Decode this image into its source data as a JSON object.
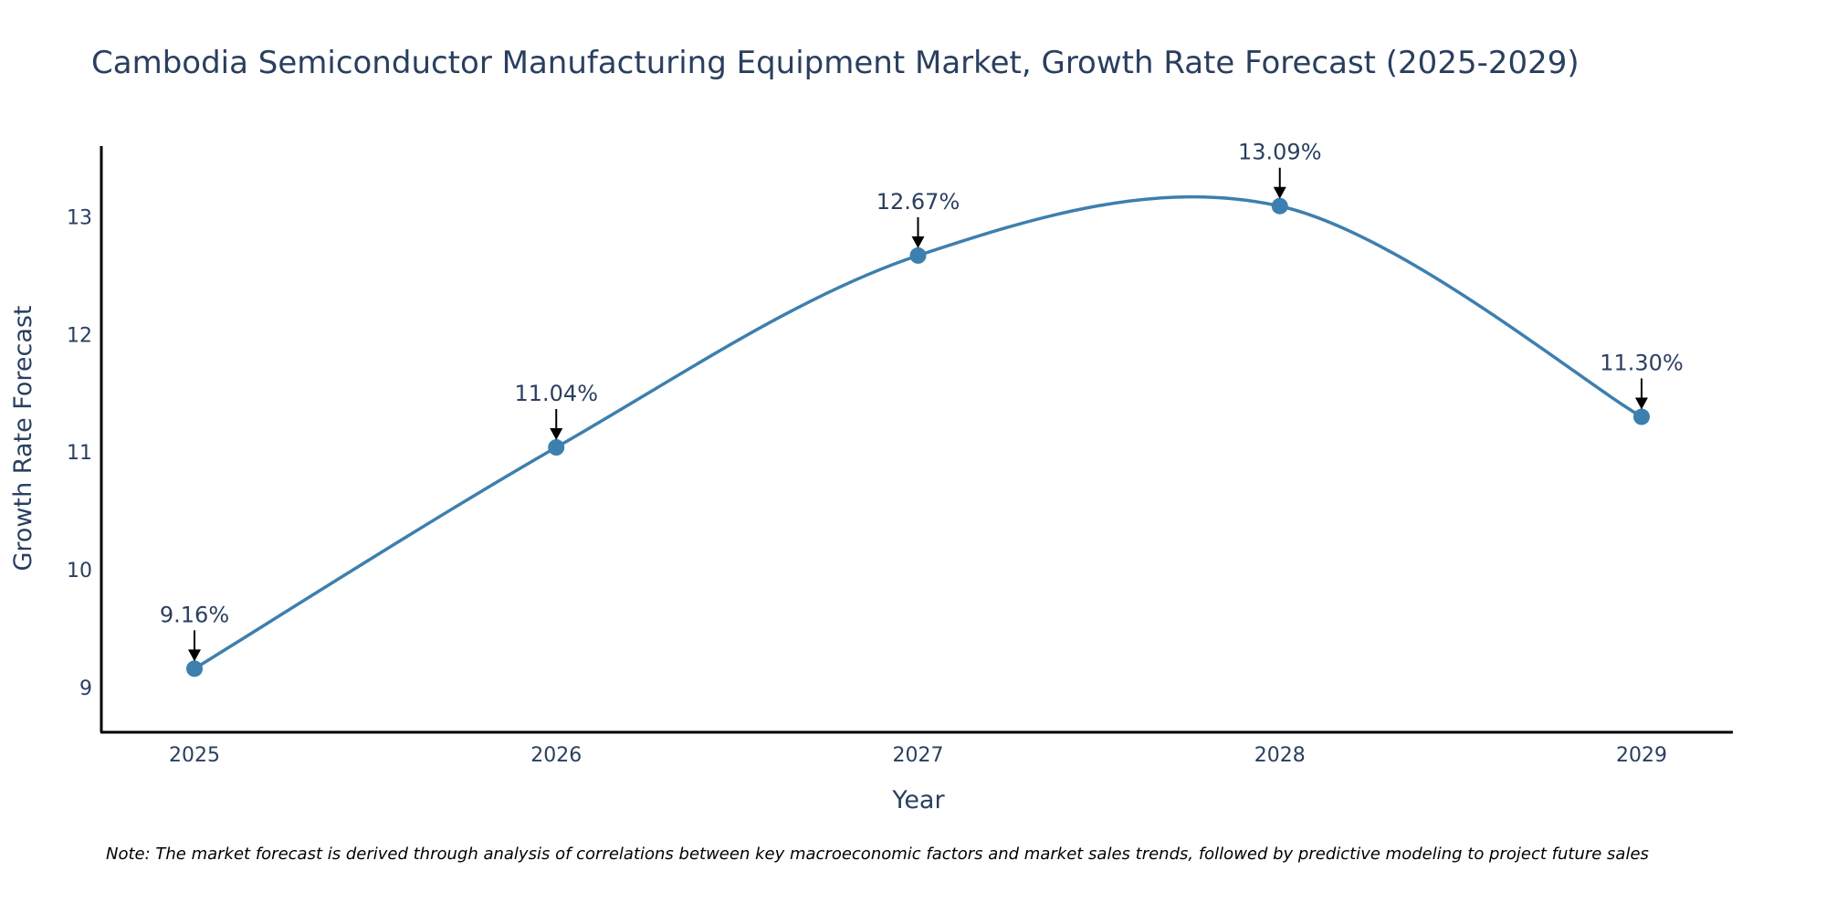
{
  "chart_data": {
    "type": "line",
    "title": "Cambodia Semiconductor Manufacturing Equipment Market, Growth Rate Forecast (2025-2029)",
    "xlabel": "Year",
    "ylabel": "Growth Rate Forecast",
    "categories": [
      "2025",
      "2026",
      "2027",
      "2028",
      "2029"
    ],
    "values": [
      9.16,
      11.04,
      12.67,
      13.09,
      11.3
    ],
    "data_labels": [
      "9.16%",
      "11.04%",
      "12.67%",
      "13.09%",
      "11.30%"
    ],
    "y_ticks": [
      9,
      10,
      11,
      12,
      13
    ],
    "ylim": [
      8.62,
      13.6
    ],
    "grid": false,
    "line_shape": "spline",
    "line_color": "#3d7fae",
    "marker_color": "#3d7fae",
    "note": "Note: The market forecast is derived through analysis of correlations between key macroeconomic factors and market sales trends, followed by predictive modeling to project future sales"
  }
}
